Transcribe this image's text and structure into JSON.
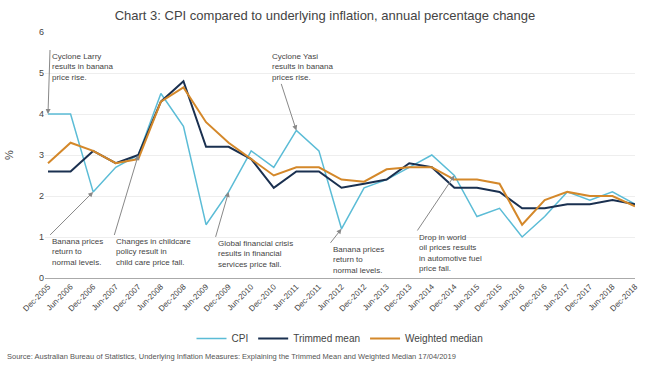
{
  "chart_data": {
    "type": "line",
    "title": "Chart 3: CPI compared to underlying inflation, annual percentage change",
    "ylabel": "%",
    "source": "Source: Australian Bureau of Statistics, Underlying Inflation Measures: Explaining the Trimmed Mean and Weighted Median 17/04/2019",
    "categories": [
      "Dec-2005",
      "Jun-2006",
      "Dec-2006",
      "Jun-2007",
      "Dec-2007",
      "Jun-2008",
      "Dec-2008",
      "Jun-2009",
      "Dec-2009",
      "Jun-2010",
      "Dec-2010",
      "Jun-2011",
      "Dec-2011",
      "Jun-2012",
      "Dec-2012",
      "Jun-2013",
      "Dec-2013",
      "Jun-2014",
      "Dec-2014",
      "Jun-2015",
      "Dec-2015",
      "Jun-2016",
      "Dec-2016",
      "Jun-2017",
      "Dec-2017",
      "Jun-2018",
      "Dec-2018"
    ],
    "series": [
      {
        "name": "CPI",
        "color": "#5bbcd6",
        "values": [
          4.0,
          4.0,
          2.1,
          2.7,
          3.0,
          4.5,
          3.7,
          1.3,
          2.1,
          3.1,
          2.7,
          3.6,
          3.1,
          1.2,
          2.2,
          2.4,
          2.7,
          3.0,
          2.5,
          1.5,
          1.7,
          1.0,
          1.5,
          2.1,
          1.9,
          2.1,
          1.8
        ]
      },
      {
        "name": "Trimmed mean",
        "color": "#1a3050",
        "values": [
          2.6,
          2.6,
          3.1,
          2.8,
          3.0,
          4.3,
          4.8,
          3.2,
          3.2,
          2.9,
          2.2,
          2.6,
          2.6,
          2.2,
          2.3,
          2.4,
          2.8,
          2.7,
          2.2,
          2.2,
          2.1,
          1.7,
          1.7,
          1.8,
          1.8,
          1.9,
          1.8
        ]
      },
      {
        "name": "Weighted median",
        "color": "#d4882a",
        "values": [
          2.8,
          3.3,
          3.1,
          2.8,
          2.9,
          4.3,
          4.65,
          3.8,
          3.3,
          2.9,
          2.5,
          2.7,
          2.7,
          2.4,
          2.35,
          2.65,
          2.7,
          2.7,
          2.4,
          2.4,
          2.3,
          1.3,
          1.9,
          2.1,
          2.0,
          2.0,
          1.75
        ]
      }
    ],
    "ylim": [
      0,
      6
    ],
    "yticks": [
      0,
      1,
      2,
      3,
      4,
      5,
      6
    ],
    "grid": true,
    "legend": "bottom",
    "annotations": [
      {
        "text": "Cyclone Larry\nresults in banana\nprice rise.",
        "x": "Dec-2005",
        "y": 4.0
      },
      {
        "text": "Banana prices\nreturn to\nnormal levels.",
        "x": "Dec-2006",
        "y": 2.1
      },
      {
        "text": "Changes in childcare\npolicy result in\nchild care price fall.",
        "x": "Dec-2007",
        "y": 3.0
      },
      {
        "text": "Global financial crisis\nresults in financial\nservices price fall.",
        "x": "Dec-2009",
        "y": 2.1
      },
      {
        "text": "Cyclone Yasi\nresults in banana\nprices rise.",
        "x": "Jun-2011",
        "y": 3.6
      },
      {
        "text": "Banana prices\nreturn to\nnormal levels.",
        "x": "Jun-2012",
        "y": 1.2
      },
      {
        "text": "Drop in world\noil prices results\nin automotive fuel\nprice fall.",
        "x": "Dec-2014",
        "y": 2.5
      }
    ]
  }
}
